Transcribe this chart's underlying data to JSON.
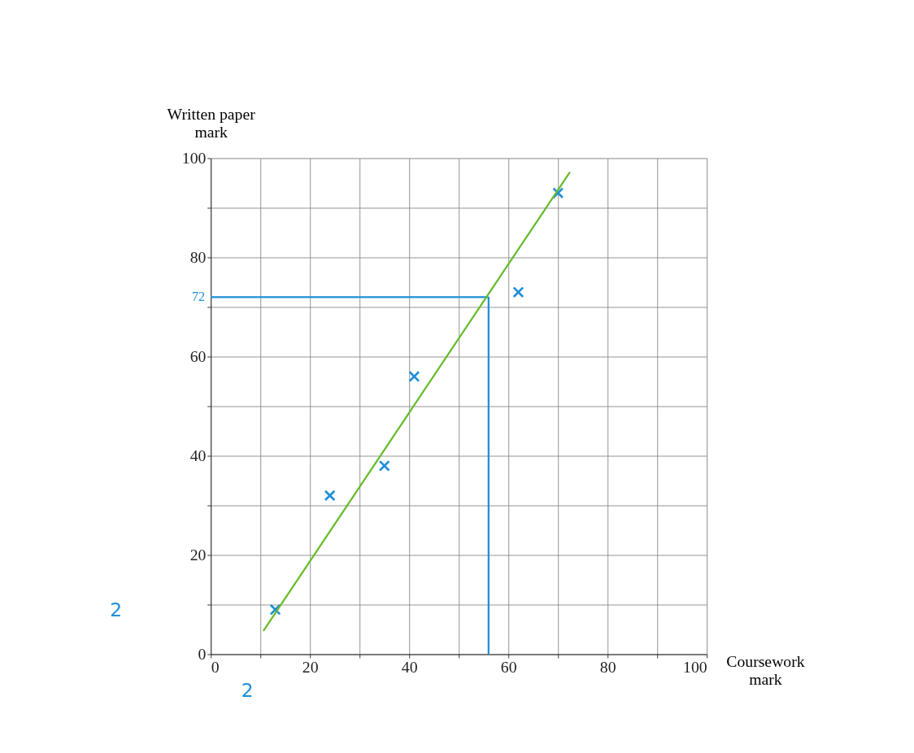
{
  "chart_data": {
    "type": "scatter",
    "xlabel": "Coursework mark",
    "ylabel": "Written paper mark",
    "series": [
      {
        "color": "#1e8fd8",
        "x": [
          13,
          24,
          35,
          41,
          62,
          70
        ],
        "values": [
          9,
          32,
          38,
          56,
          73,
          93
        ]
      },
      {
        "type": "line",
        "marker": "none",
        "color": "#66bb2a",
        "x": [
          10.6,
          72.4
        ],
        "values": [
          4.7,
          97.2
        ]
      }
    ],
    "xlim": [
      0,
      100
    ],
    "ylim": [
      0,
      100
    ],
    "xticks": [
      0,
      {
        "value": 10,
        "label": null
      },
      20,
      {
        "value": 30,
        "label": null
      },
      40,
      {
        "value": 50,
        "label": null
      },
      60,
      {
        "value": 70,
        "label": null
      },
      80,
      {
        "value": 90,
        "label": null
      },
      100
    ],
    "yticks": [
      0,
      {
        "value": 10,
        "label": null
      },
      20,
      {
        "value": 30,
        "label": null
      },
      40,
      {
        "value": 50,
        "label": null
      },
      60,
      {
        "value": 70,
        "label": null
      },
      80,
      {
        "value": 90,
        "label": null
      },
      100
    ],
    "grid": true,
    "marker": "cross",
    "ref_lines": [
      {
        "axis": "y",
        "value": 72,
        "label": "72",
        "color": "#1e8fd8"
      },
      {
        "axis": "x",
        "value": 56,
        "color": "#1e8fd8"
      }
    ],
    "annotations": [
      "2",
      "2"
    ]
  }
}
